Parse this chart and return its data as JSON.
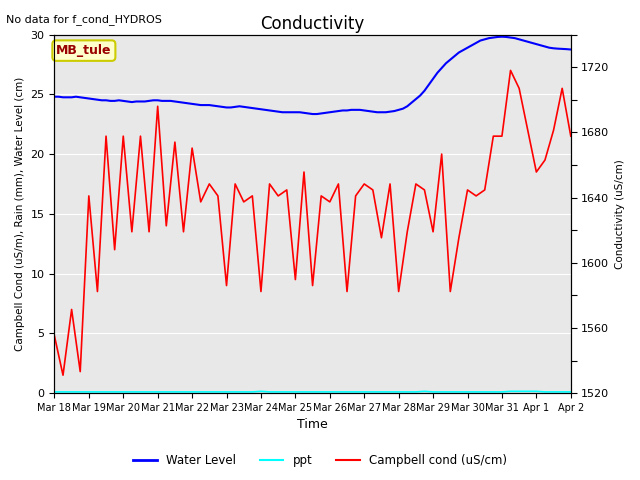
{
  "title": "Conductivity",
  "top_left_text": "No data for f_cond_HYDROS",
  "xlabel": "Time",
  "ylabel_left": "Campbell Cond (uS/m), Rain (mm), Water Level (cm)",
  "ylabel_right": "Conductivity (uS/cm)",
  "ylim_left": [
    0,
    30
  ],
  "ylim_right": [
    1520,
    1740
  ],
  "bg_color": "#e8e8e8",
  "annotation_box": "MB_tule",
  "annotation_box_facecolor": "#ffffcc",
  "annotation_box_edgecolor": "#cccc00",
  "annotation_box_text_color": "#990000",
  "x_tick_labels": [
    "Mar 18",
    "Mar 19",
    "Mar 20",
    "Mar 21",
    "Mar 22",
    "Mar 23",
    "Mar 24",
    "Mar 25",
    "Mar 26",
    "Mar 27",
    "Mar 28",
    "Mar 29",
    "Mar 30",
    "Mar 31",
    "Apr 1",
    "Apr 2"
  ],
  "water_level_y": [
    24.8,
    24.8,
    24.75,
    24.75,
    24.75,
    24.8,
    24.75,
    24.7,
    24.65,
    24.6,
    24.55,
    24.5,
    24.5,
    24.45,
    24.45,
    24.5,
    24.45,
    24.4,
    24.35,
    24.4,
    24.4,
    24.4,
    24.45,
    24.5,
    24.5,
    24.45,
    24.45,
    24.45,
    24.4,
    24.35,
    24.3,
    24.25,
    24.2,
    24.15,
    24.1,
    24.1,
    24.1,
    24.05,
    24.0,
    23.95,
    23.9,
    23.9,
    23.95,
    24.0,
    23.95,
    23.9,
    23.85,
    23.8,
    23.75,
    23.7,
    23.65,
    23.6,
    23.55,
    23.5,
    23.5,
    23.5,
    23.5,
    23.5,
    23.45,
    23.4,
    23.35,
    23.35,
    23.4,
    23.45,
    23.5,
    23.55,
    23.6,
    23.65,
    23.65,
    23.7,
    23.7,
    23.7,
    23.65,
    23.6,
    23.55,
    23.5,
    23.5,
    23.5,
    23.55,
    23.6,
    23.7,
    23.8,
    24.0,
    24.3,
    24.6,
    24.9,
    25.3,
    25.8,
    26.3,
    26.8,
    27.2,
    27.6,
    27.9,
    28.2,
    28.5,
    28.7,
    28.9,
    29.1,
    29.3,
    29.5,
    29.6,
    29.7,
    29.75,
    29.8,
    29.82,
    29.8,
    29.75,
    29.7,
    29.6,
    29.5,
    29.4,
    29.3,
    29.2,
    29.1,
    29.0,
    28.9,
    28.85,
    28.82,
    28.8,
    28.78,
    28.75
  ],
  "campbell_y": [
    4.8,
    1.5,
    7.0,
    1.8,
    16.5,
    8.5,
    21.5,
    12.0,
    21.5,
    13.5,
    21.5,
    13.5,
    24.0,
    14.0,
    21.0,
    13.5,
    20.5,
    16.0,
    17.5,
    16.5,
    9.0,
    17.5,
    16.0,
    16.5,
    8.5,
    17.5,
    16.5,
    17.0,
    9.5,
    18.5,
    9.0,
    16.5,
    16.0,
    17.5,
    8.5,
    16.5,
    17.5,
    17.0,
    13.0,
    17.5,
    8.5,
    13.5,
    17.5,
    17.0,
    13.5,
    20.0,
    8.5,
    13.0,
    17.0,
    16.5,
    17.0,
    21.5,
    21.5,
    27.0,
    25.5,
    22.0,
    18.5,
    19.5,
    22.0,
    25.5,
    21.5
  ],
  "campbell_x_indices": [
    0,
    1,
    2,
    3,
    4,
    5,
    6,
    7,
    8,
    9,
    10,
    11,
    12,
    13,
    14,
    15,
    16,
    17,
    18,
    19,
    20,
    21,
    22,
    23,
    24,
    25,
    26,
    27,
    28,
    29,
    30,
    31,
    32,
    33,
    34,
    35,
    36,
    37,
    38,
    39,
    40,
    41,
    42,
    43,
    44,
    45,
    46,
    47,
    48,
    49,
    50,
    51,
    52,
    53,
    54,
    55,
    56,
    57,
    58,
    59,
    60
  ],
  "ppt_x_indices": [
    0,
    1,
    2,
    3,
    4,
    5,
    6,
    7,
    8,
    9,
    10,
    11,
    12,
    13,
    14,
    15,
    16,
    17,
    18,
    19,
    20,
    21,
    22,
    23,
    24,
    25,
    26,
    27,
    28,
    29,
    30,
    31,
    32,
    33,
    34,
    35,
    36,
    37,
    38,
    39,
    40,
    41,
    42,
    43,
    44,
    45,
    46,
    47,
    48,
    49,
    50,
    51,
    52,
    53,
    54,
    55,
    56,
    57,
    58,
    59,
    60
  ],
  "ppt_y": [
    0.1,
    0.1,
    0.1,
    0.1,
    0.1,
    0.1,
    0.1,
    0.1,
    0.1,
    0.1,
    0.1,
    0.1,
    0.1,
    0.1,
    0.1,
    0.1,
    0.1,
    0.1,
    0.1,
    0.1,
    0.1,
    0.1,
    0.1,
    0.1,
    0.15,
    0.1,
    0.1,
    0.1,
    0.1,
    0.1,
    0.1,
    0.1,
    0.1,
    0.1,
    0.1,
    0.1,
    0.1,
    0.1,
    0.1,
    0.1,
    0.1,
    0.1,
    0.1,
    0.15,
    0.1,
    0.1,
    0.1,
    0.1,
    0.1,
    0.1,
    0.1,
    0.1,
    0.1,
    0.15,
    0.15,
    0.15,
    0.15,
    0.1,
    0.1,
    0.1,
    0.1
  ]
}
